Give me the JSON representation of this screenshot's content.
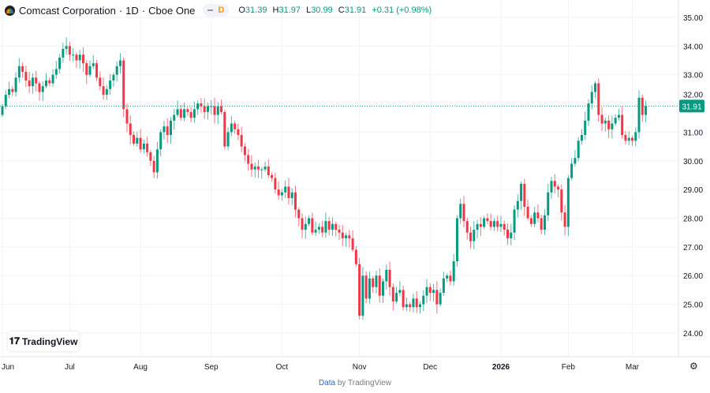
{
  "header": {
    "symbol_title": "Comcast Corporation",
    "interval": "1D",
    "exchange": "Cboe One",
    "interval_badge": "D",
    "open_label": "O",
    "open": "31.39",
    "high_label": "H",
    "high": "31.97",
    "low_label": "L",
    "low": "30.99",
    "close_label": "C",
    "close": "31.91",
    "change": "+0.31 (+0.98%)"
  },
  "watermark": {
    "text": "TradingView",
    "mark": "17"
  },
  "footer": {
    "link": "Data",
    "text": "by TradingView"
  },
  "colors": {
    "up": "#089981",
    "down": "#f23645",
    "grid": "#f0f3fa",
    "last_price": "#089981"
  },
  "chart_data": {
    "type": "candlestick",
    "title": "Comcast Corporation · 1D · Cboe One",
    "ylim": [
      23.6,
      35.3
    ],
    "y_ticks": [
      "35.00",
      "34.00",
      "33.00",
      "32.00",
      "31.00",
      "30.00",
      "29.00",
      "28.00",
      "27.00",
      "26.00",
      "25.00",
      "24.00"
    ],
    "x_ticks": [
      {
        "label": "Jun",
        "index": 0
      },
      {
        "label": "Jul",
        "index": 20
      },
      {
        "label": "Aug",
        "index": 41
      },
      {
        "label": "Sep",
        "index": 62
      },
      {
        "label": "Oct",
        "index": 83
      },
      {
        "label": "Nov",
        "index": 106
      },
      {
        "label": "Dec",
        "index": 127
      },
      {
        "label": "2026",
        "index": 148
      },
      {
        "label": "Feb",
        "index": 168
      },
      {
        "label": "Mar",
        "index": 187
      }
    ],
    "last_price": "31.91",
    "first_open": 31.6,
    "closes": [
      31.9,
      32.3,
      32.5,
      32.4,
      32.9,
      33.3,
      33.1,
      32.8,
      32.6,
      32.9,
      32.7,
      32.4,
      32.6,
      32.8,
      32.7,
      33.0,
      33.2,
      33.6,
      33.9,
      34.0,
      33.7,
      33.7,
      33.5,
      33.7,
      33.4,
      33.0,
      33.3,
      33.4,
      32.9,
      32.6,
      32.3,
      32.5,
      32.8,
      33.0,
      33.3,
      33.5,
      31.8,
      31.3,
      30.9,
      30.6,
      30.8,
      30.4,
      30.6,
      30.3,
      30.0,
      29.6,
      30.4,
      31.0,
      31.2,
      30.9,
      31.4,
      31.6,
      31.8,
      31.5,
      31.8,
      31.7,
      31.5,
      31.8,
      32.0,
      31.9,
      31.7,
      31.9,
      31.9,
      31.6,
      31.9,
      31.7,
      30.5,
      31.0,
      31.3,
      31.1,
      30.9,
      30.5,
      30.2,
      29.9,
      29.7,
      29.8,
      29.7,
      29.7,
      29.8,
      29.5,
      29.4,
      29.0,
      28.8,
      28.9,
      29.1,
      28.7,
      28.9,
      28.3,
      28.0,
      27.6,
      27.8,
      28.0,
      27.5,
      27.6,
      27.7,
      27.5,
      27.9,
      27.6,
      27.8,
      27.6,
      27.5,
      27.3,
      27.4,
      27.3,
      26.9,
      26.4,
      24.6,
      26.0,
      25.2,
      25.9,
      25.6,
      26.0,
      25.3,
      25.8,
      26.2,
      25.6,
      25.1,
      25.4,
      25.5,
      24.9,
      25.0,
      24.9,
      25.2,
      24.9,
      25.0,
      25.3,
      25.6,
      25.4,
      25.5,
      25.0,
      25.4,
      25.9,
      26.0,
      25.8,
      26.5,
      28.0,
      28.5,
      27.9,
      27.5,
      27.2,
      27.6,
      27.8,
      27.7,
      28.0,
      27.9,
      27.7,
      27.9,
      27.7,
      27.8,
      27.6,
      27.3,
      27.5,
      28.3,
      28.6,
      29.2,
      28.4,
      28.0,
      27.8,
      28.2,
      28.0,
      27.6,
      28.1,
      28.9,
      29.3,
      29.1,
      29.0,
      28.2,
      27.7,
      29.4,
      29.9,
      30.1,
      30.7,
      30.9,
      31.4,
      32.0,
      32.4,
      32.7,
      31.6,
      31.3,
      31.4,
      31.1,
      31.3,
      31.5,
      31.6,
      30.9,
      30.7,
      30.8,
      30.7,
      31.0,
      32.2,
      31.6,
      31.91
    ]
  }
}
